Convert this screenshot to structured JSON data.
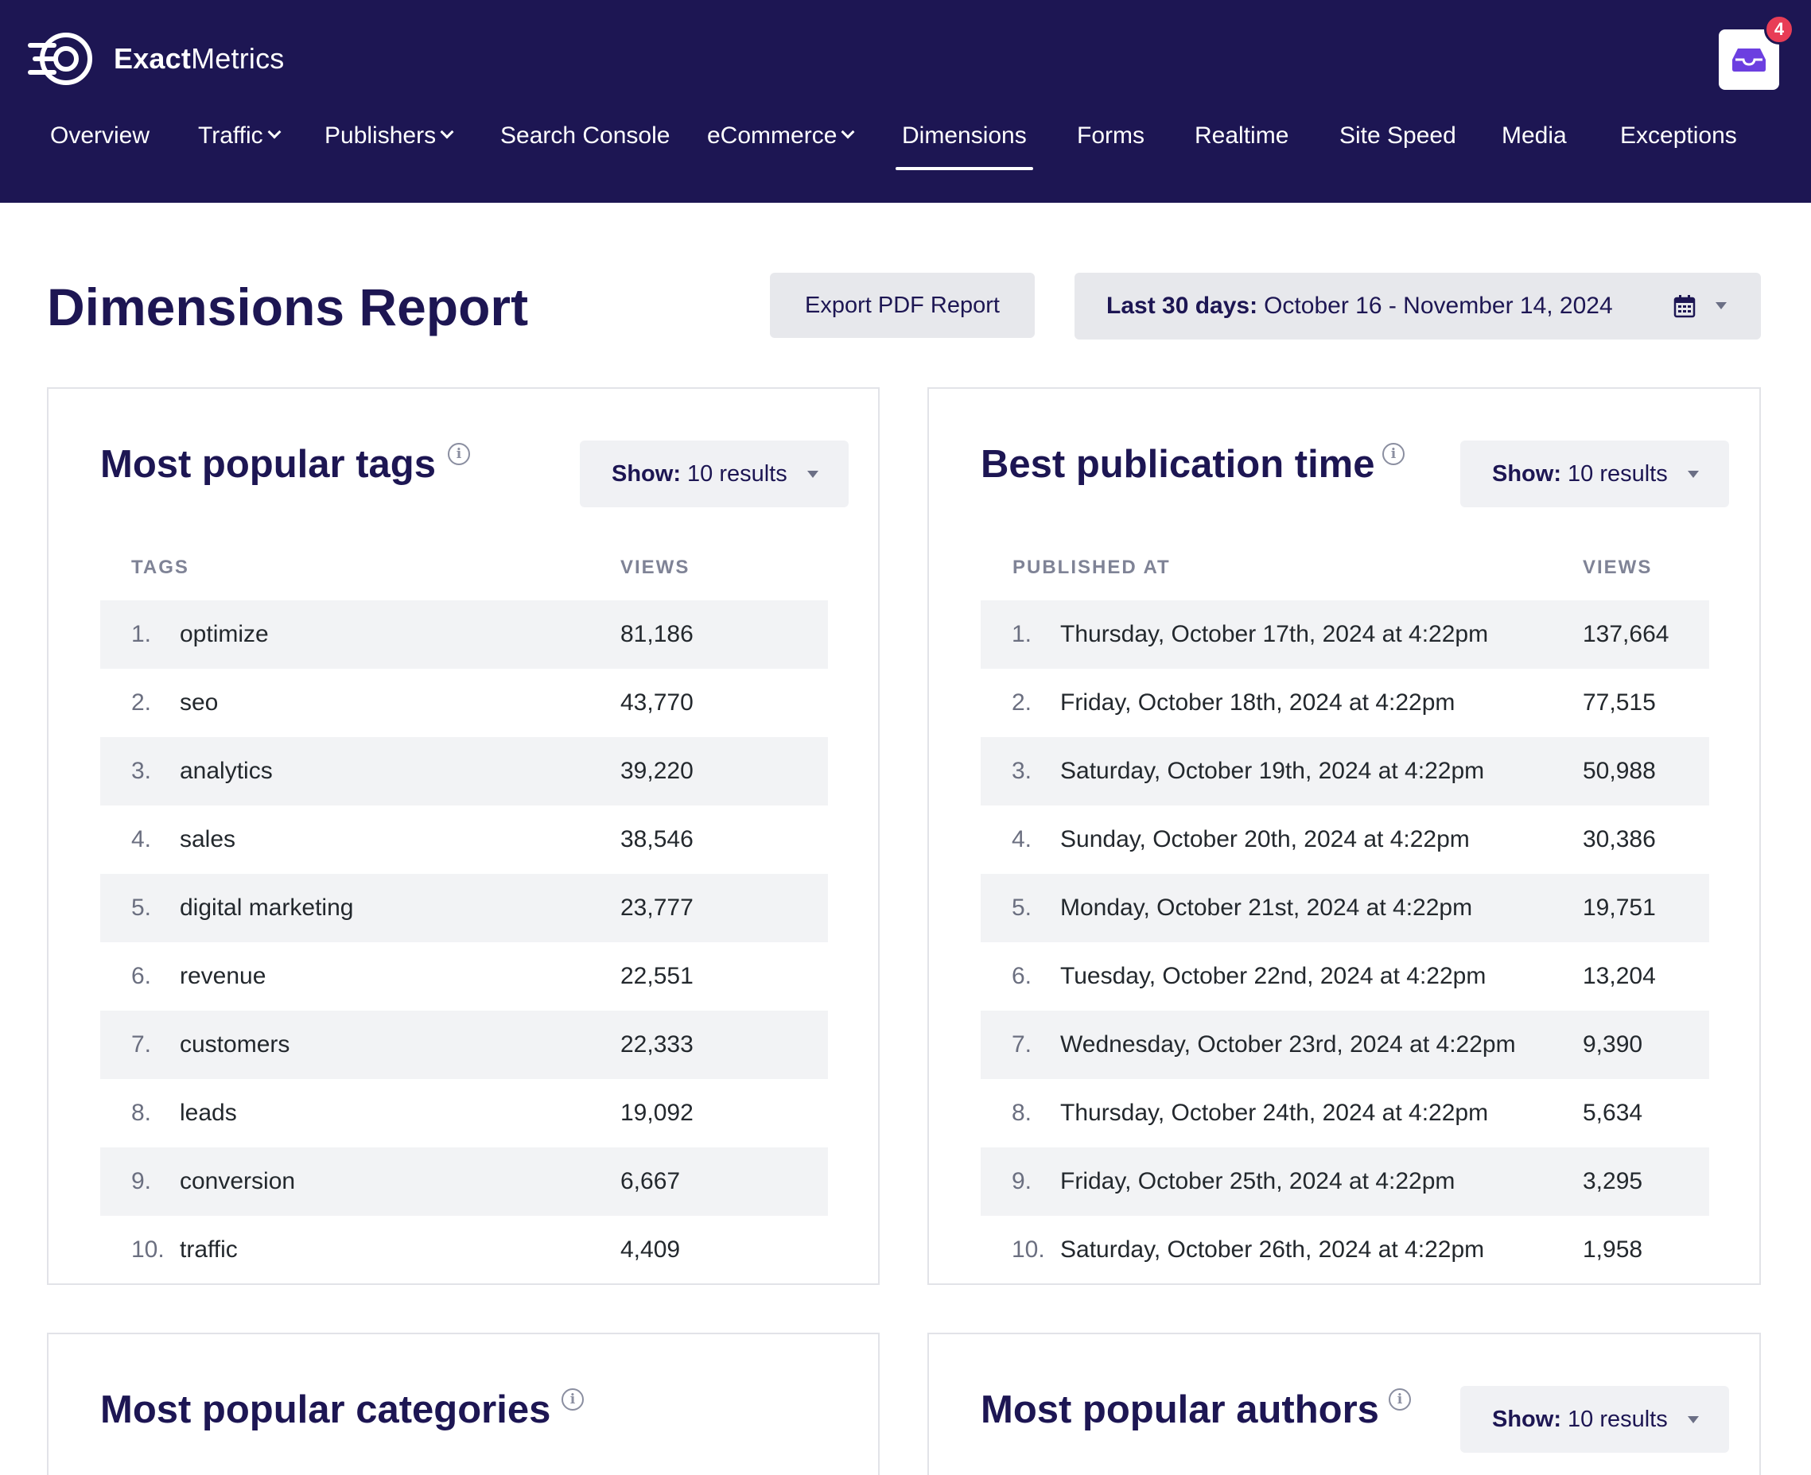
{
  "app": {
    "brand_bold": "Exact",
    "brand_light": "Metrics",
    "notification_count": "4"
  },
  "nav": {
    "items": [
      {
        "label": "Overview",
        "dropdown": false
      },
      {
        "label": "Traffic",
        "dropdown": true
      },
      {
        "label": "Publishers",
        "dropdown": true
      },
      {
        "label": "Search Console",
        "dropdown": false
      },
      {
        "label": "eCommerce",
        "dropdown": true
      },
      {
        "label": "Dimensions",
        "dropdown": false,
        "active": true
      },
      {
        "label": "Forms",
        "dropdown": false
      },
      {
        "label": "Realtime",
        "dropdown": false
      },
      {
        "label": "Site Speed",
        "dropdown": false
      },
      {
        "label": "Media",
        "dropdown": false
      },
      {
        "label": "Exceptions",
        "dropdown": false
      }
    ]
  },
  "page": {
    "title": "Dimensions Report",
    "export_label": "Export PDF Report",
    "date_range_bold": "Last 30 days:",
    "date_range": "October 16 - November 14, 2024"
  },
  "tags_card": {
    "title": "Most popular tags",
    "show_bold": "Show:",
    "show_value": "10 results",
    "col_label": "TAGS",
    "col_value": "VIEWS",
    "rows": [
      {
        "num": "1.",
        "label": "optimize",
        "value": "81,186"
      },
      {
        "num": "2.",
        "label": "seo",
        "value": "43,770"
      },
      {
        "num": "3.",
        "label": "analytics",
        "value": "39,220"
      },
      {
        "num": "4.",
        "label": "sales",
        "value": "38,546"
      },
      {
        "num": "5.",
        "label": "digital marketing",
        "value": "23,777"
      },
      {
        "num": "6.",
        "label": "revenue",
        "value": "22,551"
      },
      {
        "num": "7.",
        "label": "customers",
        "value": "22,333"
      },
      {
        "num": "8.",
        "label": "leads",
        "value": "19,092"
      },
      {
        "num": "9.",
        "label": "conversion",
        "value": "6,667"
      },
      {
        "num": "10.",
        "label": "traffic",
        "value": "4,409"
      }
    ]
  },
  "pubtime_card": {
    "title": "Best publication time",
    "show_bold": "Show:",
    "show_value": "10 results",
    "col_label": "PUBLISHED AT",
    "col_value": "VIEWS",
    "rows": [
      {
        "num": "1.",
        "label": "Thursday, October 17th, 2024 at 4:22pm",
        "value": "137,664"
      },
      {
        "num": "2.",
        "label": "Friday, October 18th, 2024 at 4:22pm",
        "value": "77,515"
      },
      {
        "num": "3.",
        "label": "Saturday, October 19th, 2024 at 4:22pm",
        "value": "50,988"
      },
      {
        "num": "4.",
        "label": "Sunday, October 20th, 2024 at 4:22pm",
        "value": "30,386"
      },
      {
        "num": "5.",
        "label": "Monday, October 21st, 2024 at 4:22pm",
        "value": "19,751"
      },
      {
        "num": "6.",
        "label": "Tuesday, October 22nd, 2024 at 4:22pm",
        "value": "13,204"
      },
      {
        "num": "7.",
        "label": "Wednesday, October 23rd, 2024 at 4:22pm",
        "value": "9,390"
      },
      {
        "num": "8.",
        "label": "Thursday, October 24th, 2024 at 4:22pm",
        "value": "5,634"
      },
      {
        "num": "9.",
        "label": "Friday, October 25th, 2024 at 4:22pm",
        "value": "3,295"
      },
      {
        "num": "10.",
        "label": "Saturday, October 26th, 2024 at 4:22pm",
        "value": "1,958"
      }
    ]
  },
  "categories_card": {
    "title": "Most popular categories"
  },
  "authors_card": {
    "title": "Most popular authors",
    "show_bold": "Show:",
    "show_value": "10 results"
  },
  "icons": {
    "logo": "exactmetrics-logo-icon",
    "inbox": "inbox-icon",
    "info": "info-icon",
    "calendar": "calendar-icon",
    "caret": "caret-down-icon"
  },
  "colors": {
    "header_bg": "#1d1653",
    "title": "#1d1653",
    "badge": "#e83d56",
    "row_shade": "#f2f3f5"
  }
}
